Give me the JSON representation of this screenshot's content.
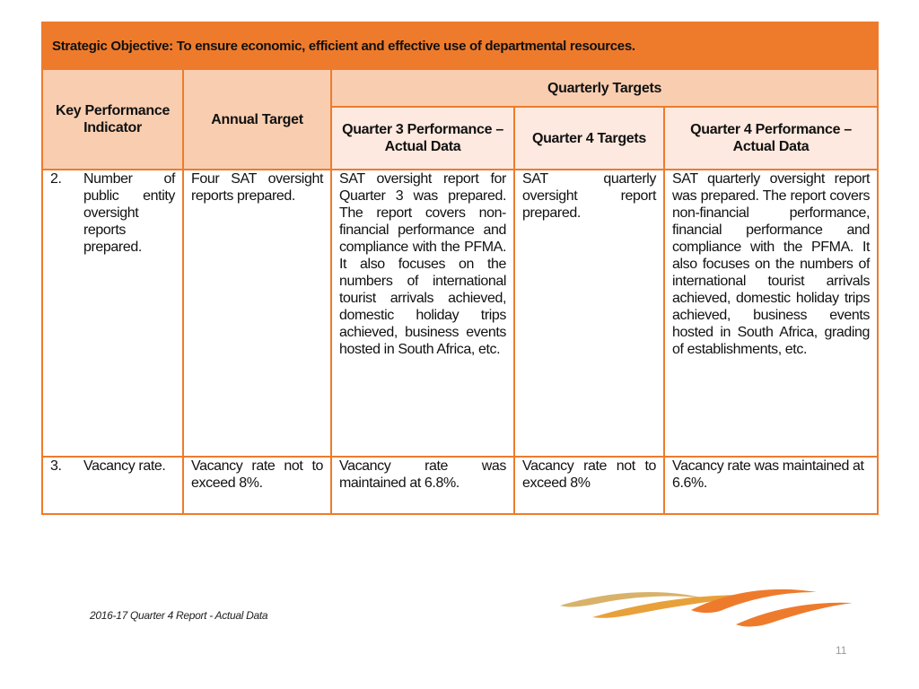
{
  "objective": "Strategic Objective: To ensure economic, efficient and effective use of departmental resources.",
  "headers": {
    "kpi": "Key Performance Indicator",
    "annual_target": "Annual Target",
    "quarterly_targets": "Quarterly Targets",
    "q3_performance": "Quarter 3 Performance – Actual Data",
    "q4_targets": "Quarter  4 Targets",
    "q4_performance": "Quarter 4 Performance – Actual Data"
  },
  "rows": [
    {
      "num": "2.",
      "kpi": "Number of public entity oversight reports prepared.",
      "annual_target": "Four SAT oversight reports prepared.",
      "q3_performance": "SAT oversight report for Quarter 3 was prepared. The report covers non-financial performance and compliance with the PFMA. It also focuses on the numbers of international tourist arrivals achieved, domestic holiday trips achieved, business events hosted in South Africa, etc.",
      "q4_targets": "SAT quarterly oversight report prepared.",
      "q4_performance": "SAT quarterly oversight report was prepared. The report covers non-financial performance, financial performance and compliance with the PFMA. It also focuses on the numbers of international tourist arrivals achieved, domestic holiday trips achieved, business events hosted in South Africa, grading of establishments, etc."
    },
    {
      "num": "3.",
      "kpi": "Vacancy rate.",
      "annual_target": "Vacancy rate not to exceed 8%.",
      "q3_performance": "Vacancy rate was maintained at 6.8%.",
      "q4_targets": "Vacancy rate not to exceed 8%",
      "q4_performance": "Vacancy rate was maintained at 6.6%."
    }
  ],
  "footer": {
    "report_label": "2016-17 Quarter 4 Report - Actual Data",
    "page_number": "11"
  },
  "colors": {
    "accent": "#ee7b2c",
    "header_bg": "#f9ceb0",
    "subheader_bg": "#fde9df",
    "logo_gold": "#d9b26a"
  },
  "logo": {
    "icon": "swoosh-logo-icon"
  }
}
